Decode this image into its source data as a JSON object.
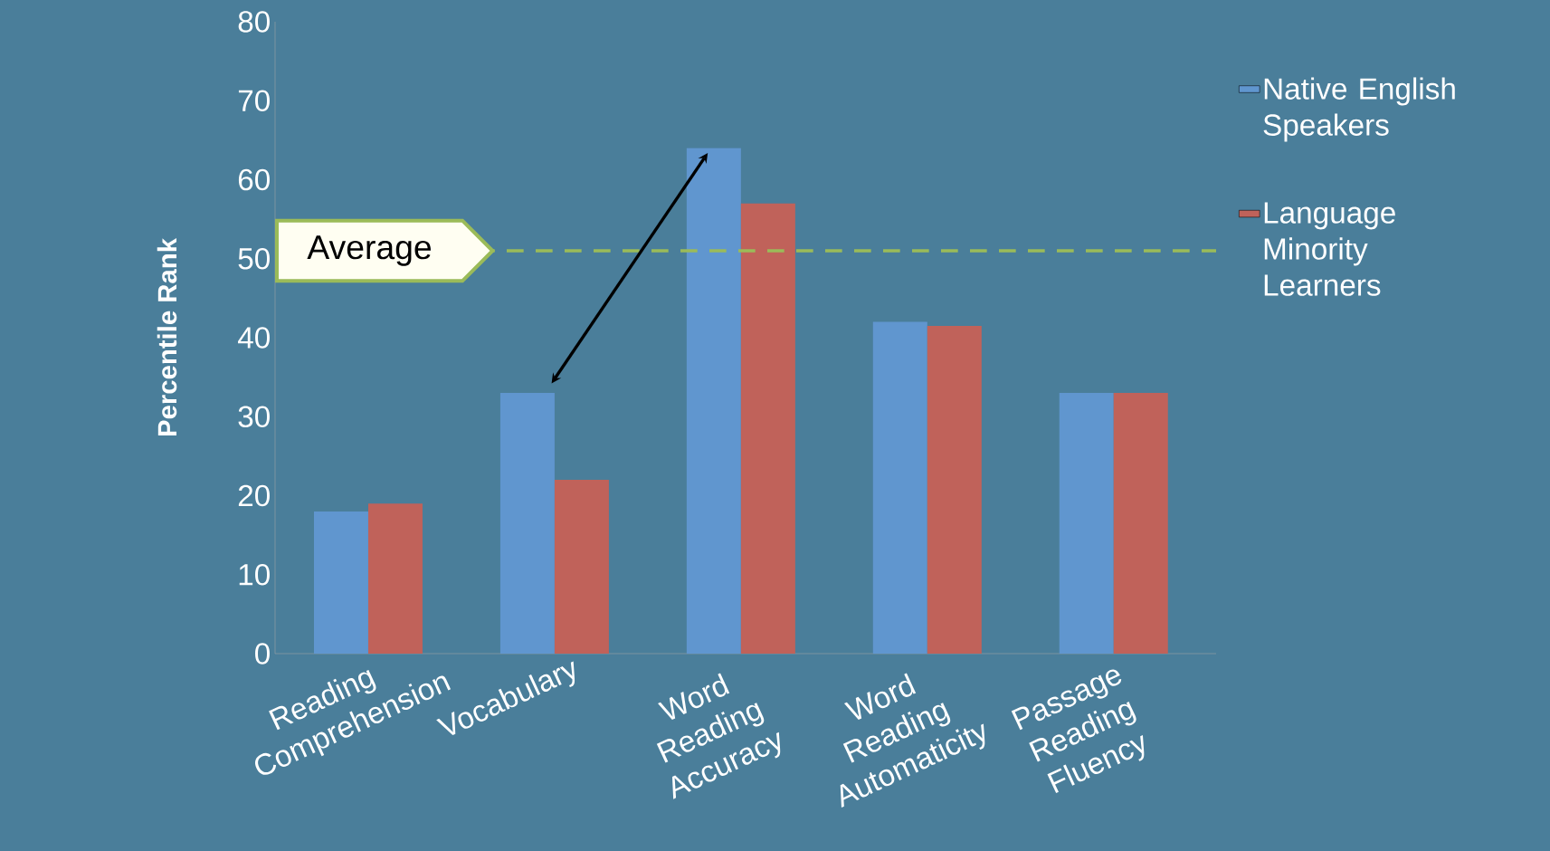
{
  "chart_data": {
    "type": "bar",
    "ylabel": "Percentile Rank",
    "categories": [
      "Reading Comprehension",
      "Vocabulary",
      "Word Reading Accuracy",
      "Word Reading Automaticity",
      "Passage Reading Fluency"
    ],
    "series": [
      {
        "name": "Native English Speakers",
        "color": "#6096cf",
        "values": [
          18,
          33,
          64,
          42,
          33
        ]
      },
      {
        "name": "Language Minority Learners",
        "color": "#c0625a",
        "values": [
          19,
          22,
          57,
          41.5,
          33
        ]
      }
    ],
    "ylim": [
      0,
      80
    ],
    "yticks": [
      0,
      10,
      20,
      30,
      40,
      50,
      60,
      70,
      80
    ],
    "legend": "right",
    "ref_lines": [
      {
        "axis": "y",
        "value": 51,
        "label": "Average",
        "color": "#9bbb59",
        "line_style": "dashed"
      }
    ]
  }
}
